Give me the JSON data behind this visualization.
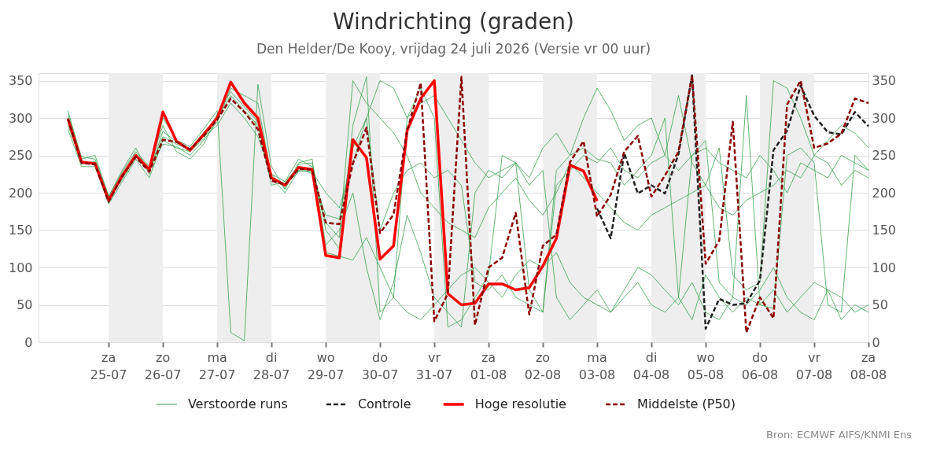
{
  "chart_data": {
    "type": "line",
    "title": "Windrichting (graden)",
    "subtitle": "Den Helder/De Kooy, vrijdag 24 juli 2026 (Versie vr 00 uur)",
    "annotations": [
      "Bron: ECMWF AIFS/KNMI Ens"
    ],
    "x": [
      "2026-07-24T06:00",
      "2026-07-24T12:00",
      "2026-07-24T18:00",
      "2026-07-25T00:00",
      "2026-07-25T06:00",
      "2026-07-25T12:00",
      "2026-07-25T18:00",
      "2026-07-26T00:00",
      "2026-07-26T06:00",
      "2026-07-26T12:00",
      "2026-07-26T18:00",
      "2026-07-27T00:00",
      "2026-07-27T06:00",
      "2026-07-27T12:00",
      "2026-07-27T18:00",
      "2026-07-28T00:00",
      "2026-07-28T06:00",
      "2026-07-28T12:00",
      "2026-07-28T18:00",
      "2026-07-29T00:00",
      "2026-07-29T06:00",
      "2026-07-29T12:00",
      "2026-07-29T18:00",
      "2026-07-30T00:00",
      "2026-07-30T06:00",
      "2026-07-30T12:00",
      "2026-07-30T18:00",
      "2026-07-31T00:00",
      "2026-07-31T06:00",
      "2026-07-31T12:00",
      "2026-07-31T18:00",
      "2026-08-01T00:00",
      "2026-08-01T06:00",
      "2026-08-01T12:00",
      "2026-08-01T18:00",
      "2026-08-02T00:00",
      "2026-08-02T06:00",
      "2026-08-02T12:00",
      "2026-08-02T18:00",
      "2026-08-03T00:00",
      "2026-08-03T06:00",
      "2026-08-03T12:00",
      "2026-08-03T18:00",
      "2026-08-04T00:00",
      "2026-08-04T06:00",
      "2026-08-04T12:00",
      "2026-08-04T18:00",
      "2026-08-05T00:00",
      "2026-08-05T06:00",
      "2026-08-05T12:00",
      "2026-08-05T18:00",
      "2026-08-06T00:00",
      "2026-08-06T06:00",
      "2026-08-06T12:00",
      "2026-08-06T18:00",
      "2026-08-07T00:00",
      "2026-08-07T06:00",
      "2026-08-07T12:00",
      "2026-08-07T18:00",
      "2026-08-08T00:00"
    ],
    "series": [
      {
        "name": "Verstoorde runs",
        "color": "#2e9e44",
        "line_style": "solid",
        "values": [
          310,
          245,
          250,
          195,
          230,
          260,
          225,
          300,
          270,
          262,
          285,
          310,
          13,
          2,
          345,
          235,
          205,
          238,
          240,
          150,
          125,
          290,
          355,
          40,
          60,
          300,
          340,
          300,
          20,
          30,
          60,
          90,
          250,
          240,
          70,
          40,
          230,
          250,
          260,
          245,
          240,
          210,
          230,
          250,
          300,
          60,
          250,
          270,
          80,
          60,
          330,
          50,
          45,
          250,
          260,
          240,
          50,
          40,
          250,
          230
        ]
      },
      {
        "color": "#2e9e44",
        "line_style": "solid",
        "values": [
          285,
          235,
          235,
          185,
          215,
          245,
          220,
          270,
          260,
          255,
          280,
          300,
          330,
          310,
          290,
          210,
          215,
          235,
          225,
          170,
          165,
          260,
          300,
          150,
          200,
          230,
          240,
          220,
          230,
          210,
          80,
          70,
          90,
          60,
          50,
          40,
          210,
          230,
          250,
          240,
          260,
          230,
          220,
          240,
          250,
          330,
          240,
          210,
          260,
          90,
          70,
          80,
          350,
          340,
          300,
          250,
          270,
          290,
          280,
          260
        ]
      },
      {
        "color": "#2e9e44",
        "line_style": "solid",
        "values": [
          300,
          240,
          240,
          190,
          225,
          250,
          230,
          275,
          265,
          258,
          275,
          290,
          320,
          300,
          275,
          225,
          205,
          240,
          245,
          130,
          150,
          200,
          100,
          30,
          80,
          170,
          120,
          60,
          40,
          20,
          200,
          230,
          220,
          240,
          210,
          230,
          60,
          30,
          50,
          70,
          40,
          60,
          80,
          50,
          40,
          60,
          30,
          90,
          60,
          40,
          60,
          50,
          70,
          40,
          60,
          80,
          70,
          30,
          50,
          40
        ]
      },
      {
        "color": "#2e9e44",
        "line_style": "solid",
        "values": [
          295,
          238,
          242,
          188,
          220,
          252,
          232,
          265,
          262,
          250,
          270,
          295,
          340,
          330,
          320,
          220,
          200,
          230,
          228,
          200,
          180,
          240,
          300,
          350,
          340,
          300,
          320,
          330,
          300,
          270,
          240,
          220,
          230,
          240,
          220,
          260,
          280,
          250,
          300,
          340,
          310,
          270,
          290,
          300,
          250,
          230,
          250,
          260,
          240,
          230,
          220,
          250,
          230,
          200,
          240,
          230,
          220,
          250,
          240,
          230
        ]
      },
      {
        "color": "#2e9e44",
        "line_style": "solid",
        "values": [
          290,
          242,
          238,
          192,
          218,
          248,
          228,
          282,
          268,
          255,
          272,
          305,
          335,
          315,
          295,
          218,
          210,
          228,
          230,
          120,
          115,
          110,
          140,
          100,
          60,
          40,
          30,
          50,
          70,
          90,
          100,
          80,
          60,
          90,
          110,
          100,
          120,
          80,
          60,
          50,
          40,
          70,
          100,
          90,
          70,
          50,
          80,
          40,
          30,
          60,
          50,
          70,
          100,
          60,
          40,
          30,
          70,
          60,
          40,
          50
        ]
      },
      {
        "color": "#2e9e44",
        "line_style": "solid",
        "values": [
          305,
          248,
          245,
          195,
          228,
          255,
          235,
          290,
          255,
          245,
          265,
          300,
          345,
          320,
          300,
          225,
          215,
          245,
          235,
          160,
          140,
          350,
          320,
          300,
          280,
          250,
          200,
          180,
          160,
          150,
          140,
          180,
          200,
          220,
          190,
          170,
          200,
          240,
          220,
          200,
          180,
          160,
          150,
          170,
          180,
          190,
          200,
          210,
          180,
          170,
          190,
          200,
          210,
          230,
          220,
          250,
          240,
          210,
          230,
          220
        ]
      },
      {
        "name": "Controle",
        "color": "#222222",
        "line_style": "dashed",
        "values": [
          null,
          null,
          null,
          null,
          null,
          null,
          null,
          null,
          null,
          null,
          null,
          null,
          null,
          null,
          null,
          null,
          null,
          null,
          null,
          null,
          null,
          null,
          null,
          null,
          null,
          null,
          null,
          null,
          null,
          null,
          null,
          null,
          null,
          null,
          null,
          null,
          null,
          null,
          null,
          179,
          139,
          253,
          199,
          210,
          199,
          252,
          357,
          18,
          58,
          50,
          52,
          83,
          257,
          283,
          343,
          303,
          281,
          278,
          308,
          289
        ]
      },
      {
        "name": "Hoge resolutie",
        "color": "#ff0000",
        "line_style": "solid",
        "values": [
          299,
          241,
          239,
          190,
          223,
          250,
          231,
          308,
          269,
          257,
          278,
          300,
          348,
          320,
          300,
          220,
          210,
          234,
          231,
          116,
          113,
          271,
          247,
          111,
          129,
          283,
          326,
          350,
          65,
          50,
          52,
          78,
          78,
          70,
          73,
          102,
          139,
          237,
          229,
          189,
          null,
          null,
          null,
          null,
          null,
          null,
          null,
          null,
          null,
          null,
          null,
          null,
          null,
          null,
          null,
          null,
          null,
          null,
          null,
          null
        ]
      },
      {
        "name": "Middelste (P50)",
        "color": "#8b0000",
        "line_style": "dashed",
        "values": [
          299,
          240,
          238,
          188,
          222,
          248,
          228,
          271,
          268,
          258,
          276,
          298,
          326,
          308,
          285,
          216,
          211,
          232,
          231,
          160,
          158,
          239,
          287,
          146,
          171,
          283,
          347,
          28,
          65,
          355,
          23,
          100,
          113,
          173,
          37,
          129,
          144,
          241,
          269,
          168,
          197,
          255,
          276,
          195,
          223,
          255,
          357,
          105,
          136,
          295,
          13,
          60,
          32,
          318,
          350,
          260,
          266,
          279,
          326,
          320
        ]
      }
    ],
    "xlim": [
      "2026-07-23T17:00",
      "2026-08-08T00:00"
    ],
    "xticks": [
      {
        "value": "2026-07-25",
        "label": "za\n25-07"
      },
      {
        "value": "2026-07-26",
        "label": "zo\n26-07"
      },
      {
        "value": "2026-07-27",
        "label": "ma\n27-07"
      },
      {
        "value": "2026-07-28",
        "label": "di\n28-07"
      },
      {
        "value": "2026-07-29",
        "label": "wo\n29-07"
      },
      {
        "value": "2026-07-30",
        "label": "do\n30-07"
      },
      {
        "value": "2026-07-31",
        "label": "vr\n31-07"
      },
      {
        "value": "2026-08-01",
        "label": "za\n01-08"
      },
      {
        "value": "2026-08-02",
        "label": "zo\n02-08"
      },
      {
        "value": "2026-08-03",
        "label": "ma\n03-08"
      },
      {
        "value": "2026-08-04",
        "label": "di\n04-08"
      },
      {
        "value": "2026-08-05",
        "label": "wo\n05-08"
      },
      {
        "value": "2026-08-06",
        "label": "do\n06-08"
      },
      {
        "value": "2026-08-07",
        "label": "vr\n07-08"
      },
      {
        "value": "2026-08-08",
        "label": "za\n08-08"
      }
    ],
    "ylim": [
      0,
      360
    ],
    "yticks": [
      0,
      50,
      100,
      150,
      200,
      250,
      300,
      350
    ],
    "y2lim": [
      0,
      360
    ],
    "y2ticks": [
      0,
      50,
      100,
      150,
      200,
      250,
      300,
      350
    ],
    "bands": [
      {
        "axis": "x",
        "from": "2026-07-25",
        "to": "2026-07-26",
        "color": "#eeeeee"
      },
      {
        "axis": "x",
        "from": "2026-07-27",
        "to": "2026-07-28",
        "color": "#eeeeee"
      },
      {
        "axis": "x",
        "from": "2026-07-29",
        "to": "2026-07-30",
        "color": "#eeeeee"
      },
      {
        "axis": "x",
        "from": "2026-07-31",
        "to": "2026-08-01",
        "color": "#eeeeee"
      },
      {
        "axis": "x",
        "from": "2026-08-02",
        "to": "2026-08-03",
        "color": "#eeeeee"
      },
      {
        "axis": "x",
        "from": "2026-08-04",
        "to": "2026-08-05",
        "color": "#eeeeee"
      },
      {
        "axis": "x",
        "from": "2026-08-06",
        "to": "2026-08-07",
        "color": "#eeeeee"
      }
    ],
    "grid": "y",
    "legend": "bottom",
    "marker": "none"
  }
}
